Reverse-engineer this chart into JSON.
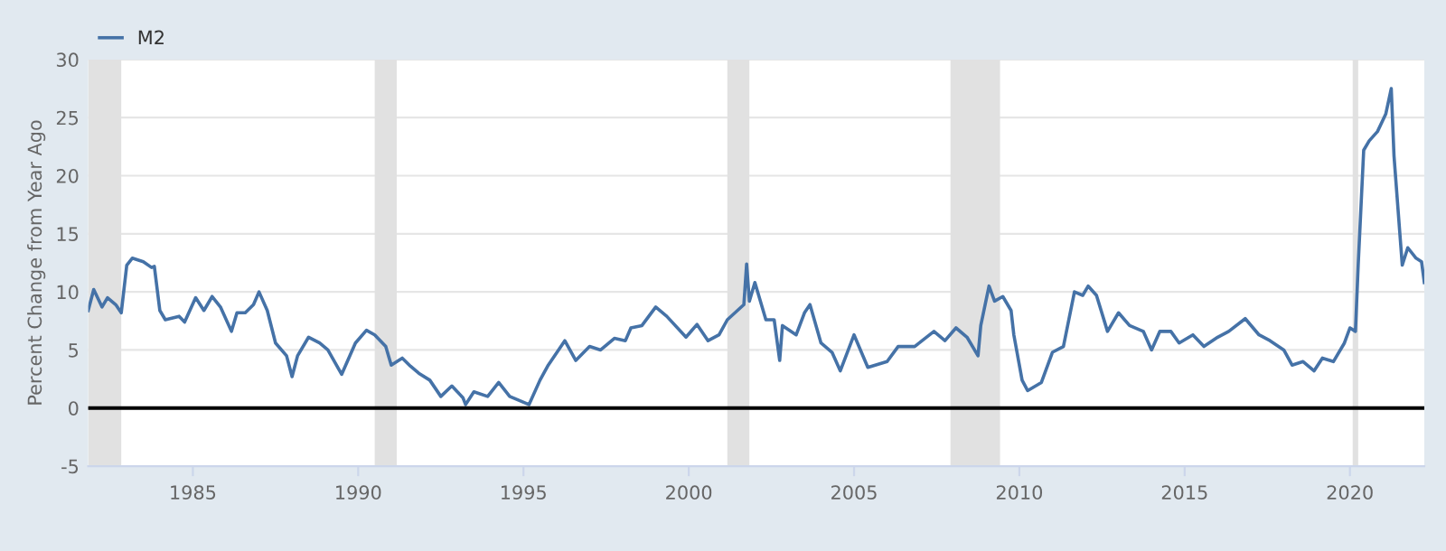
{
  "chart_data": {
    "type": "line",
    "ylabel": "Percent Change from Year Ago",
    "legend": "top left",
    "grid": "y",
    "line_style": "solid",
    "marker": "none",
    "x": [
      "1981-11",
      "1982-01",
      "1982-04",
      "1982-06",
      "1982-09",
      "1982-11",
      "1983-01",
      "1983-03",
      "1983-07",
      "1983-10",
      "1983-11",
      "1984-01",
      "1984-03",
      "1984-08",
      "1984-10",
      "1985-02",
      "1985-05",
      "1985-08",
      "1985-11",
      "1986-03",
      "1986-05",
      "1986-08",
      "1986-11",
      "1987-01",
      "1987-04",
      "1987-07",
      "1987-11",
      "1988-01",
      "1988-03",
      "1988-07",
      "1988-11",
      "1989-02",
      "1989-07",
      "1989-12",
      "1990-04",
      "1990-07",
      "1990-11",
      "1991-01",
      "1991-05",
      "1991-08",
      "1991-11",
      "1992-03",
      "1992-07",
      "1992-11",
      "1993-03",
      "1993-04",
      "1993-07",
      "1993-12",
      "1994-04",
      "1994-08",
      "1995-03",
      "1995-07",
      "1995-10",
      "1996-04",
      "1996-08",
      "1997-01",
      "1997-05",
      "1997-10",
      "1998-02",
      "1998-04",
      "1998-08",
      "1999-01",
      "1999-05",
      "1999-12",
      "2000-04",
      "2000-08",
      "2000-12",
      "2001-03",
      "2001-09",
      "2001-10",
      "2001-11",
      "2002-01",
      "2002-05",
      "2002-08",
      "2002-10",
      "2002-11",
      "2003-04",
      "2003-07",
      "2003-09",
      "2004-01",
      "2004-05",
      "2004-08",
      "2005-01",
      "2005-06",
      "2006-01",
      "2006-05",
      "2006-11",
      "2007-06",
      "2007-10",
      "2008-02",
      "2008-06",
      "2008-10",
      "2008-11",
      "2009-02",
      "2009-04",
      "2009-07",
      "2009-10",
      "2009-11",
      "2010-02",
      "2010-04",
      "2010-09",
      "2011-01",
      "2011-05",
      "2011-09",
      "2011-12",
      "2012-02",
      "2012-05",
      "2012-09",
      "2013-01",
      "2013-05",
      "2013-10",
      "2014-01",
      "2014-04",
      "2014-08",
      "2014-11",
      "2015-04",
      "2015-08",
      "2016-01",
      "2016-05",
      "2016-11",
      "2017-04",
      "2017-08",
      "2018-01",
      "2018-04",
      "2018-08",
      "2018-12",
      "2019-03",
      "2019-07",
      "2019-11",
      "2020-01",
      "2020-03",
      "2020-04",
      "2020-06",
      "2020-08",
      "2020-11",
      "2021-02",
      "2021-04",
      "2021-05",
      "2021-07",
      "2021-08",
      "2021-10",
      "2022-01",
      "2022-03",
      "2022-04"
    ],
    "series": [
      {
        "name": "M2",
        "color": "#4572a7",
        "values": [
          8.4,
          10.2,
          8.7,
          9.5,
          8.9,
          8.2,
          12.3,
          12.9,
          12.6,
          12.1,
          12.2,
          8.4,
          7.6,
          7.9,
          7.4,
          9.5,
          8.4,
          9.6,
          8.7,
          6.6,
          8.2,
          8.2,
          8.9,
          10.0,
          8.4,
          5.6,
          4.5,
          2.7,
          4.5,
          6.1,
          5.6,
          5.0,
          2.9,
          5.6,
          6.7,
          6.3,
          5.3,
          3.7,
          4.3,
          3.6,
          3.0,
          2.4,
          1.0,
          1.9,
          0.9,
          0.3,
          1.4,
          1.0,
          2.2,
          1.0,
          0.3,
          2.4,
          3.7,
          5.8,
          4.1,
          5.3,
          5.0,
          6.0,
          5.8,
          6.9,
          7.1,
          8.7,
          7.9,
          6.1,
          7.2,
          5.8,
          6.3,
          7.6,
          8.9,
          12.4,
          9.2,
          10.8,
          7.6,
          7.6,
          4.1,
          7.1,
          6.3,
          8.2,
          8.9,
          5.6,
          4.8,
          3.2,
          6.3,
          3.5,
          4.0,
          5.3,
          5.3,
          6.6,
          5.8,
          6.9,
          6.1,
          4.5,
          7.1,
          10.5,
          9.2,
          9.6,
          8.4,
          6.3,
          2.4,
          1.5,
          2.2,
          4.8,
          5.3,
          10.0,
          9.7,
          10.5,
          9.7,
          6.6,
          8.2,
          7.1,
          6.6,
          5.0,
          6.6,
          6.6,
          5.6,
          6.3,
          5.3,
          6.1,
          6.6,
          7.7,
          6.3,
          5.8,
          5.0,
          3.7,
          4.0,
          3.2,
          4.3,
          4.0,
          5.6,
          6.9,
          6.6,
          12.3,
          22.2,
          23.0,
          23.8,
          25.3,
          27.5,
          21.7,
          15.4,
          12.3,
          13.8,
          12.9,
          12.6,
          10.8
        ]
      }
    ],
    "xlim": [
      "1981-11",
      "2022-04"
    ],
    "xticks": [
      "1985",
      "1990",
      "1995",
      "2000",
      "2005",
      "2010",
      "2015",
      "2020"
    ],
    "ylim": [
      -5,
      30
    ],
    "yticks": [
      -5,
      0,
      5,
      10,
      15,
      20,
      25,
      30
    ],
    "ref_lines": [
      {
        "axis": "y",
        "value": 0,
        "color": "#000000"
      }
    ],
    "bands": [
      {
        "axis": "x",
        "from": "1981-11",
        "to": "1982-11",
        "color": "#e1e1e1"
      },
      {
        "axis": "x",
        "from": "1990-07",
        "to": "1991-03",
        "color": "#e1e1e1"
      },
      {
        "axis": "x",
        "from": "2001-03",
        "to": "2001-11",
        "color": "#e1e1e1"
      },
      {
        "axis": "x",
        "from": "2007-12",
        "to": "2009-06",
        "color": "#e1e1e1"
      },
      {
        "axis": "x",
        "from": "2020-02",
        "to": "2020-04",
        "color": "#e1e1e1"
      }
    ]
  }
}
